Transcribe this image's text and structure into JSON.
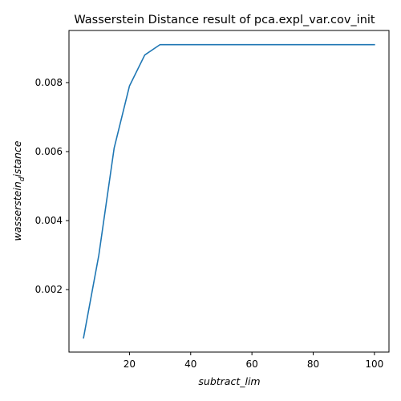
{
  "chart_data": {
    "type": "line",
    "title": "Wasserstein Distance result of pca.expl_var.cov_init",
    "xlabel": "subtract_lim",
    "ylabel_main": "wasserstein",
    "ylabel_sub": "d",
    "ylabel_tail": "istance",
    "xlim": [
      0.25,
      104.75
    ],
    "ylim": [
      0.00019,
      0.00951
    ],
    "xticks": [
      20,
      40,
      60,
      80,
      100
    ],
    "xtick_labels": [
      "20",
      "40",
      "60",
      "80",
      "100"
    ],
    "yticks": [
      0.002,
      0.004,
      0.006,
      0.008
    ],
    "ytick_labels": [
      "0.002",
      "0.004",
      "0.006",
      "0.008"
    ],
    "grid": false,
    "series": [
      {
        "name": "wasserstein_distance",
        "color": "#1f77b4",
        "x": [
          5,
          10,
          15,
          20,
          25,
          30,
          35,
          40,
          45,
          50,
          55,
          60,
          65,
          70,
          75,
          80,
          85,
          90,
          95,
          100
        ],
        "y": [
          0.0006,
          0.003,
          0.0061,
          0.0079,
          0.0088,
          0.0091,
          0.0091,
          0.0091,
          0.0091,
          0.0091,
          0.0091,
          0.0091,
          0.0091,
          0.0091,
          0.0091,
          0.0091,
          0.0091,
          0.0091,
          0.0091,
          0.0091
        ]
      }
    ]
  }
}
